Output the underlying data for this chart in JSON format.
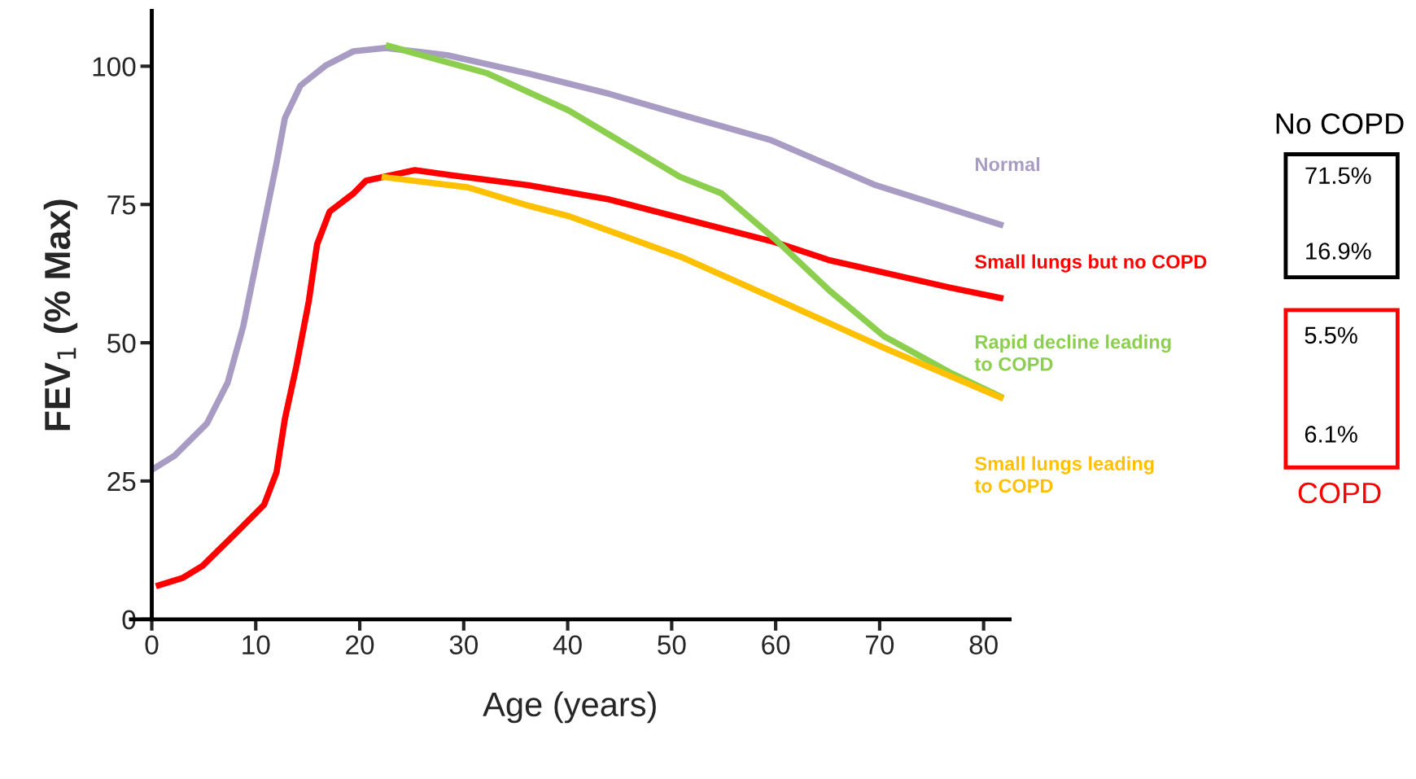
{
  "chart_data": {
    "type": "line",
    "xlabel": "Age (years)",
    "ylabel": "FEV$_{1}$ (% Max)",
    "xlim": [
      -2,
      82.5
    ],
    "ylim": [
      0,
      110
    ],
    "xticks": [
      0,
      10,
      20,
      30,
      40,
      50,
      60,
      70,
      80
    ],
    "yticks": [
      0,
      25,
      50,
      75,
      100
    ],
    "grid": false,
    "legend": false,
    "series": [
      {
        "name": "Normal",
        "color": "#a99cc4",
        "x": [
          0,
          2.2,
          5.3,
          7.3,
          8.8,
          10.4,
          12,
          12.8,
          14.3,
          16.7,
          19.4,
          22.5,
          28.4,
          36.2,
          44,
          50.8,
          59.6,
          69.6,
          81.9
        ],
        "values": [
          27,
          29.6,
          35.4,
          42.8,
          53,
          67.8,
          82.5,
          90.6,
          96.5,
          100.1,
          102.7,
          103.3,
          102,
          98.7,
          95,
          91.3,
          86.6,
          78.5,
          71.2
        ]
      },
      {
        "name": "Small lungs but no COPD",
        "color": "#ff0000",
        "x": [
          0.4,
          3,
          4.9,
          8.1,
          10.8,
          12,
          12.8,
          13.9,
          15.1,
          15.9,
          17.1,
          19.4,
          20.6,
          25.3,
          28.8,
          36.2,
          44,
          50.8,
          59.9,
          65.2,
          76.7,
          81.9
        ],
        "values": [
          6,
          7.5,
          9.7,
          15.6,
          20.7,
          26.6,
          36.2,
          45.7,
          57.5,
          67.8,
          73.7,
          77,
          79.3,
          81.2,
          80.3,
          78.5,
          75.9,
          72.6,
          68.2,
          64.9,
          60,
          58
        ]
      },
      {
        "name": "Rapid decline leading\nto COPD",
        "color": "#8ccf4e",
        "x": [
          22.5,
          32.3,
          40.1,
          50.8,
          54.8,
          59.9,
          65.2,
          70.4,
          76.7,
          81.9
        ],
        "values": [
          103.8,
          98.7,
          92,
          80,
          77,
          68.8,
          59.4,
          51.2,
          44.7,
          40
        ]
      },
      {
        "name": "Small lungs leading\nto COPD",
        "color": "#ffc000",
        "x": [
          22.1,
          30.4,
          36.2,
          40.1,
          50.8,
          59.9,
          70.4,
          81.9
        ],
        "values": [
          80,
          78.1,
          74.8,
          72.9,
          65.6,
          58,
          49.1,
          39.9
        ]
      }
    ],
    "annotations": [
      "No COPD",
      "71.5%",
      "16.9%",
      "5.5%",
      "6.1%",
      "COPD"
    ]
  }
}
